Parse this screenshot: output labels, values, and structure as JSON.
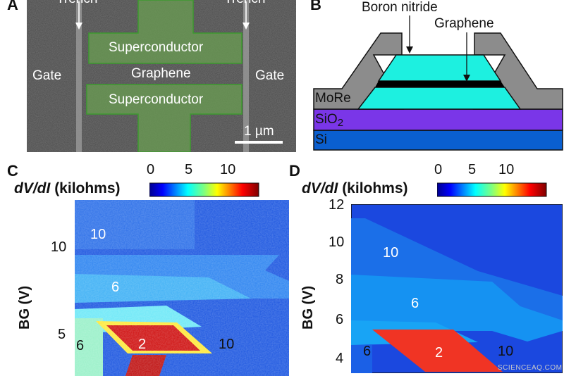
{
  "panelA": {
    "letter": "A",
    "trench_left": "Trench",
    "trench_right": "Trench",
    "superconductor_top": "Superconductor",
    "graphene": "Graphene",
    "superconductor_bottom": "Superconductor",
    "gate_left": "Gate",
    "gate_right": "Gate",
    "scale_bar": "1 µm"
  },
  "panelB": {
    "letter": "B",
    "boron_nitride": "Boron nitride",
    "graphene": "Graphene",
    "more": "MoRe",
    "sio2_base": "SiO",
    "sio2_sub": "2",
    "si": "Si",
    "colors": {
      "bn": "#1df0e0",
      "graphene": "#000000",
      "more": "#8c8c8c",
      "sio2": "#7a36e8",
      "si": "#0a5fd0"
    }
  },
  "panelC": {
    "letter": "C",
    "colorbar_label_main": "dV/dI",
    "colorbar_label_unit": "(kilohms)",
    "colorbar_ticks": [
      "0",
      "5",
      "10"
    ],
    "y_ticks": [
      "10",
      "5"
    ],
    "y_axis_label": "BG (V)",
    "region_labels": {
      "r10": "10",
      "r6": "6",
      "r2": "2",
      "left6": "6",
      "right10": "10"
    }
  },
  "panelD": {
    "letter": "D",
    "colorbar_label_main": "dV/dI",
    "colorbar_label_unit": "(kilohms)",
    "colorbar_ticks": [
      "0",
      "5",
      "10"
    ],
    "y_ticks": [
      "12",
      "10",
      "8",
      "6",
      "4"
    ],
    "y_axis_label": "BG (V)",
    "region_labels": {
      "r10": "10",
      "r6": "6",
      "r2": "2",
      "left6": "6",
      "right10": "10"
    }
  },
  "watermark": "SCIENCEAQ.COM"
}
